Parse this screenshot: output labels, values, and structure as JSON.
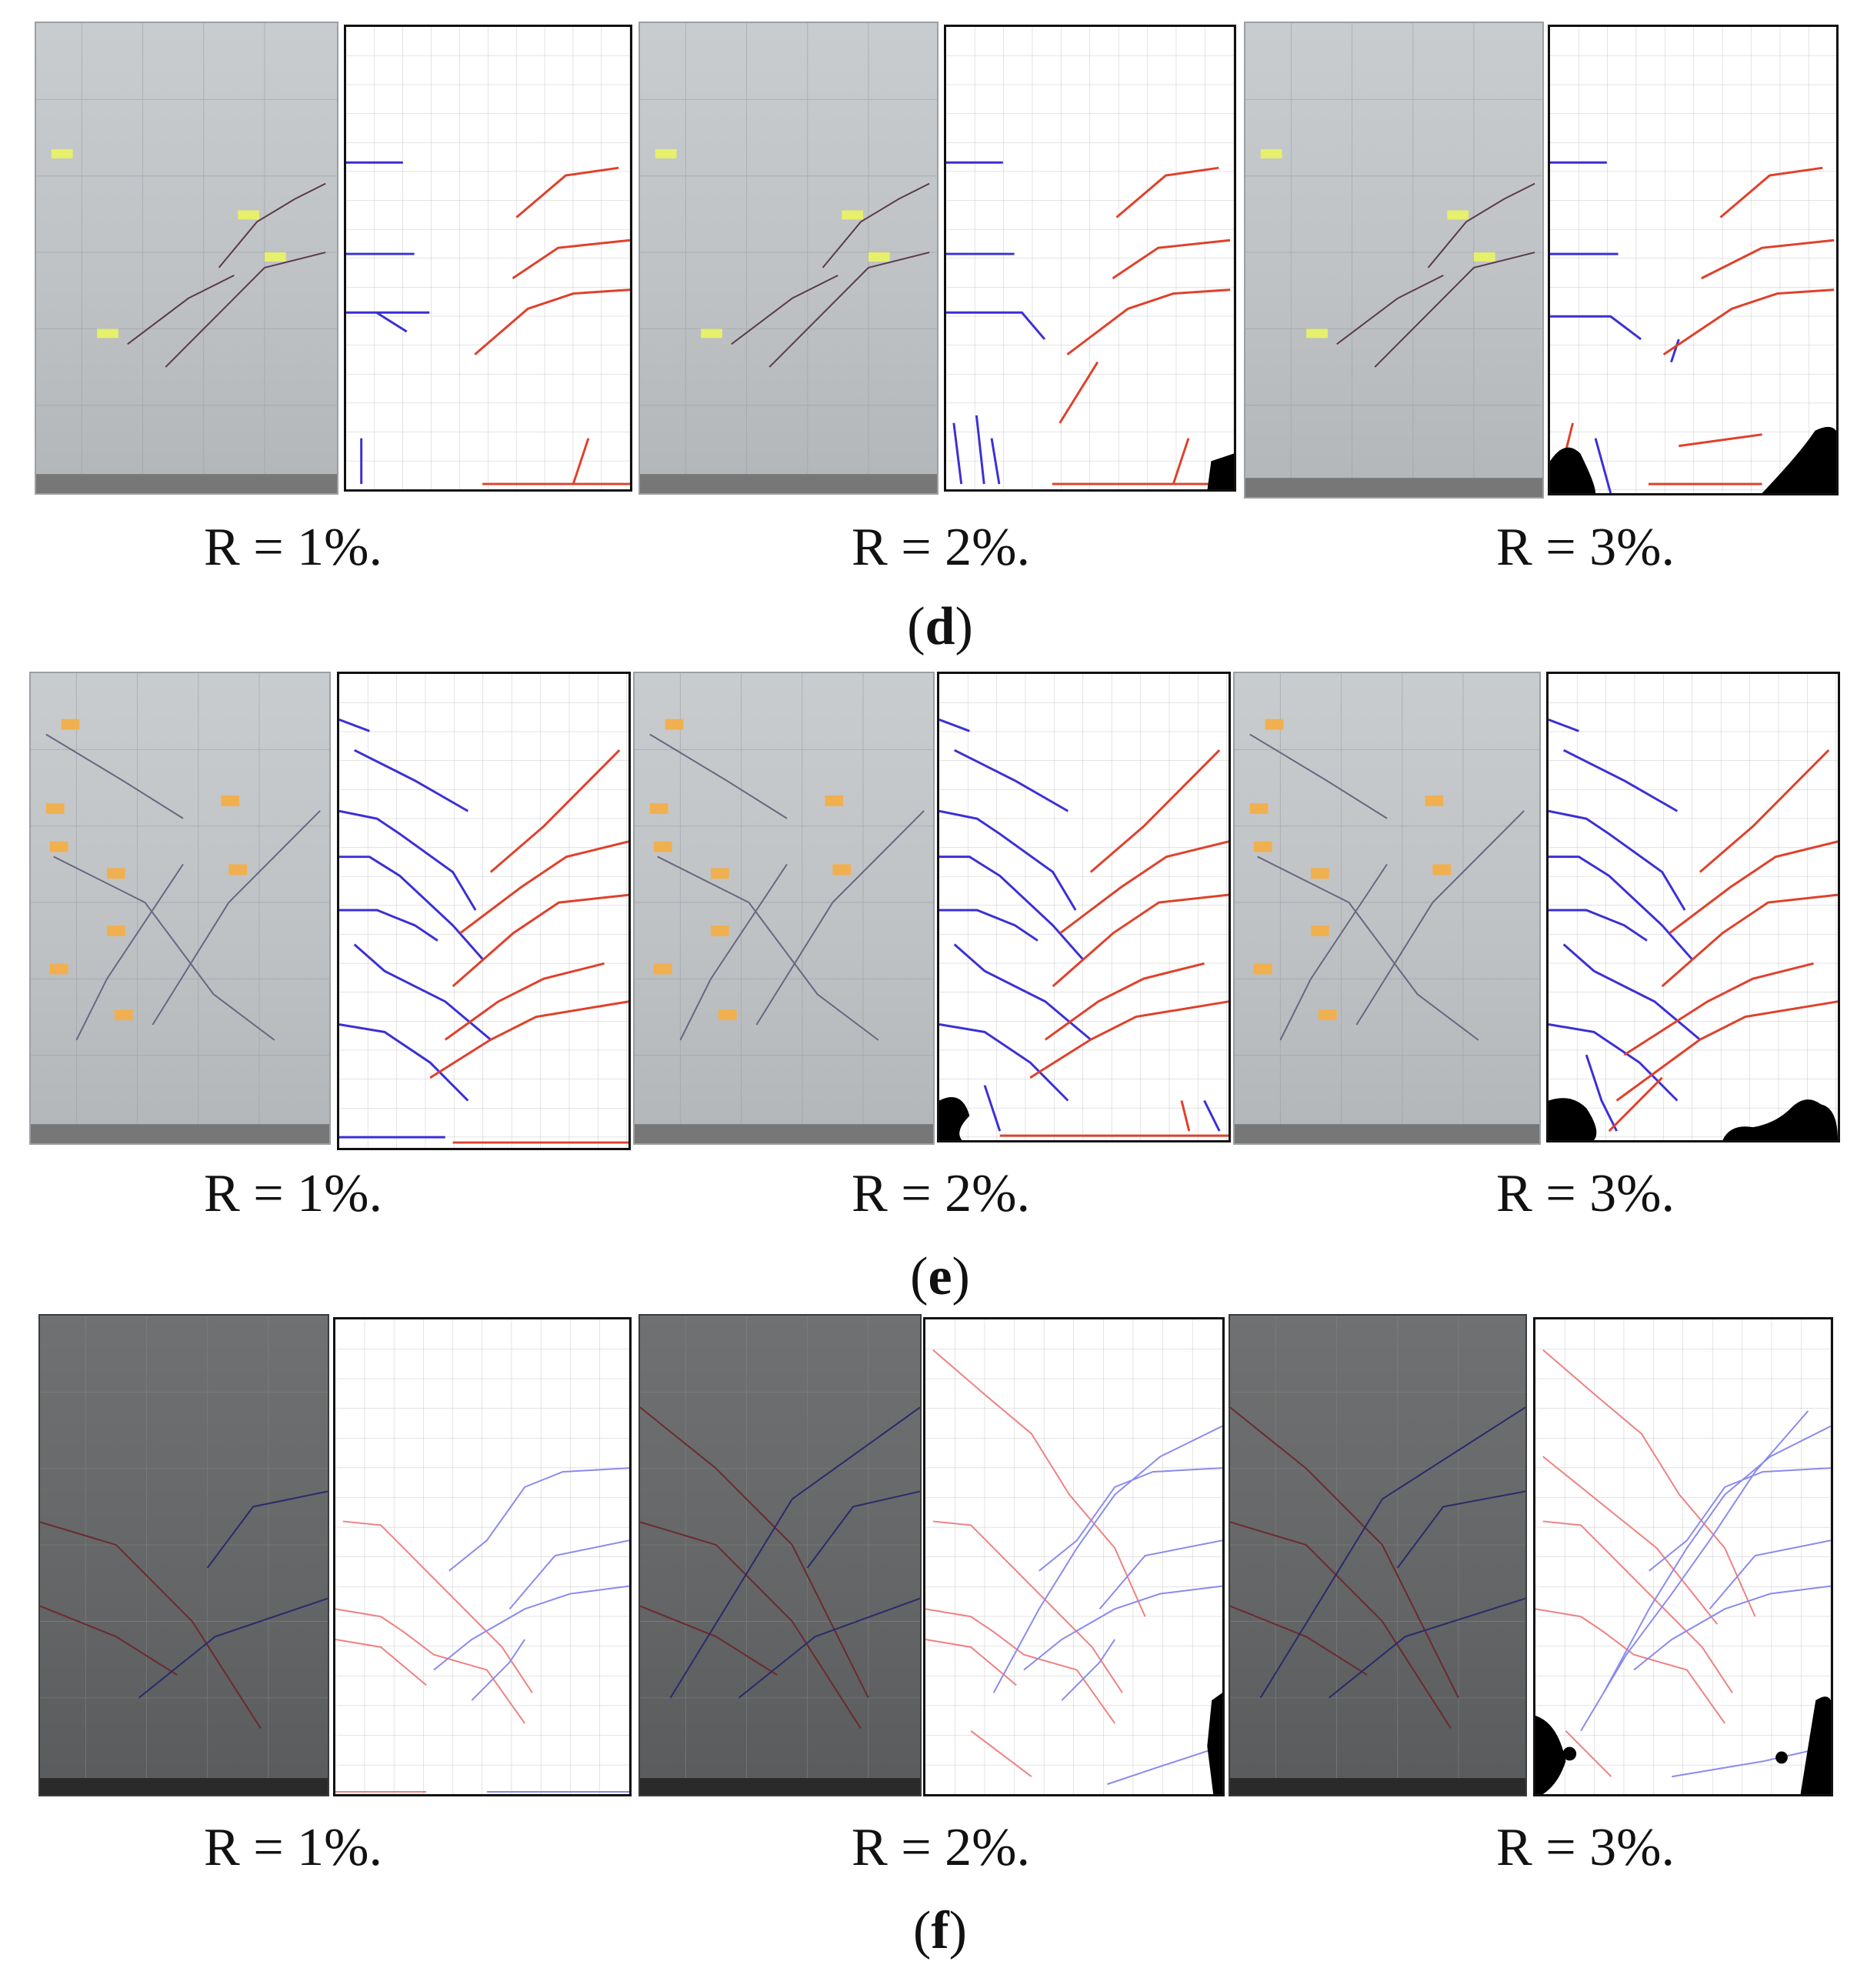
{
  "figure": {
    "groups": [
      {
        "id": "d",
        "label_open": "(",
        "label_letter": "d",
        "label_close": ")",
        "captions": [
          "R = 1%.",
          "R = 2%.",
          "R = 3%."
        ]
      },
      {
        "id": "e",
        "label_open": "(",
        "label_letter": "e",
        "label_close": ")",
        "captions": [
          "R = 1%.",
          "R = 2%.",
          "R = 3%."
        ]
      },
      {
        "id": "f",
        "label_open": "(",
        "label_letter": "f",
        "label_close": ")",
        "captions": [
          "R = 1%.",
          "R = 2%.",
          "R = 3%."
        ]
      }
    ],
    "colors": {
      "crack_red": "#e0402a",
      "crack_blue": "#3b2fd6",
      "crack_light_red": "#f08080",
      "crack_light_blue": "#8a8af0",
      "spalling": "#000000",
      "grid": "#c8c8c8",
      "photo_crack": "#5a3a4a",
      "tag_yellow": "#e6f06a",
      "tag_orange": "#f0b050"
    }
  }
}
